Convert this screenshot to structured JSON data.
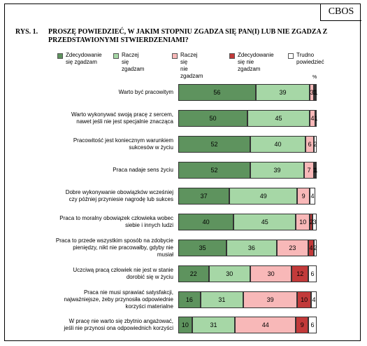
{
  "header": {
    "brand": "CBOS"
  },
  "figure": {
    "number": "RYS. 1.",
    "title": "PROSZĘ POWIEDZIEĆ, W JAKIM STOPNIU ZGADZA SIĘ PAN(I) LUB NIE ZGADZA Z PRZEDSTAWIONYMI STWIERDZENIAMI?",
    "percent_sign": "%"
  },
  "chart_data": {
    "type": "bar",
    "orientation": "horizontal",
    "stacked": true,
    "title": "PROSZĘ POWIEDZIEĆ, W JAKIM STOPNIU ZGADZA SIĘ PAN(I) LUB NIE ZGADZA Z PRZEDSTAWIONYMI STWIERDZENIAMI?",
    "unit": "%",
    "legend_position": "top",
    "grid": false,
    "xlim": [
      0,
      100
    ],
    "categories": [
      "Warto być pracowitym",
      "Warto wykonywać swoją pracę z sercem,\nnawet jeśli nie jest specjalnie znacząca",
      "Pracowitość jest koniecznym warunkiem\nsukcesów w życiu",
      "Praca nadaje sens życiu",
      "Dobre wykonywanie obowiązków wcześniej\nczy później przyniesie nagrodę lub sukces",
      "Praca to moralny obowiązek człowieka wobec\nsiebie i innych ludzi",
      "Praca to przede wszystkim sposób na zdobycie\npieniędzy, nikt nie pracowałby, gdyby nie\nmusiał",
      "Uczciwą pracą człowiek nie jest w stanie\ndorobić się w życiu",
      "Praca nie musi sprawiać satysfakcji,\nnajważniejsze, żeby przynosiła odpowiednie\nkorzyści materialne",
      "W pracę nie warto się zbytnio angażować,\njeśli nie przynosi ona odpowiednich korzyści"
    ],
    "series": [
      {
        "name": "Zdecydowanie\nsię zgadzam",
        "color": "#5e935e",
        "values": [
          56,
          50,
          52,
          52,
          37,
          40,
          35,
          22,
          16,
          10
        ]
      },
      {
        "name": "Raczej się\nzgadzam",
        "color": "#a6d7a6",
        "values": [
          39,
          45,
          40,
          39,
          49,
          45,
          36,
          30,
          31,
          31
        ]
      },
      {
        "name": "Raczej się\nnie zgadzam",
        "color": "#f8b8b8",
        "values": [
          3,
          4,
          6,
          7,
          9,
          10,
          23,
          30,
          39,
          44
        ]
      },
      {
        "name": "Zdecydowanie\nsię nie zgadzam",
        "color": "#c23a3a",
        "values": [
          1,
          0,
          0,
          1,
          0,
          2,
          4,
          12,
          10,
          9
        ]
      },
      {
        "name": "Trudno\npowiedzieć",
        "color": "#ffffff",
        "values": [
          1,
          1,
          2,
          1,
          4,
          3,
          2,
          6,
          4,
          6
        ]
      }
    ],
    "bar_labels": [
      [
        "56",
        "39",
        "3",
        "1",
        "1"
      ],
      [
        "50",
        "45",
        "4",
        "",
        "1"
      ],
      [
        "52",
        "40",
        "6",
        "",
        "2"
      ],
      [
        "52",
        "39",
        "7",
        "1",
        "1"
      ],
      [
        "37",
        "49",
        "9",
        "",
        "4"
      ],
      [
        "40",
        "45",
        "10",
        "2",
        "3"
      ],
      [
        "35",
        "36",
        "23",
        "4",
        "2"
      ],
      [
        "22",
        "30",
        "30",
        "12",
        "6"
      ],
      [
        "16",
        "31",
        "39",
        "10",
        "4"
      ],
      [
        "10",
        "31",
        "44",
        "9",
        "6"
      ]
    ]
  }
}
